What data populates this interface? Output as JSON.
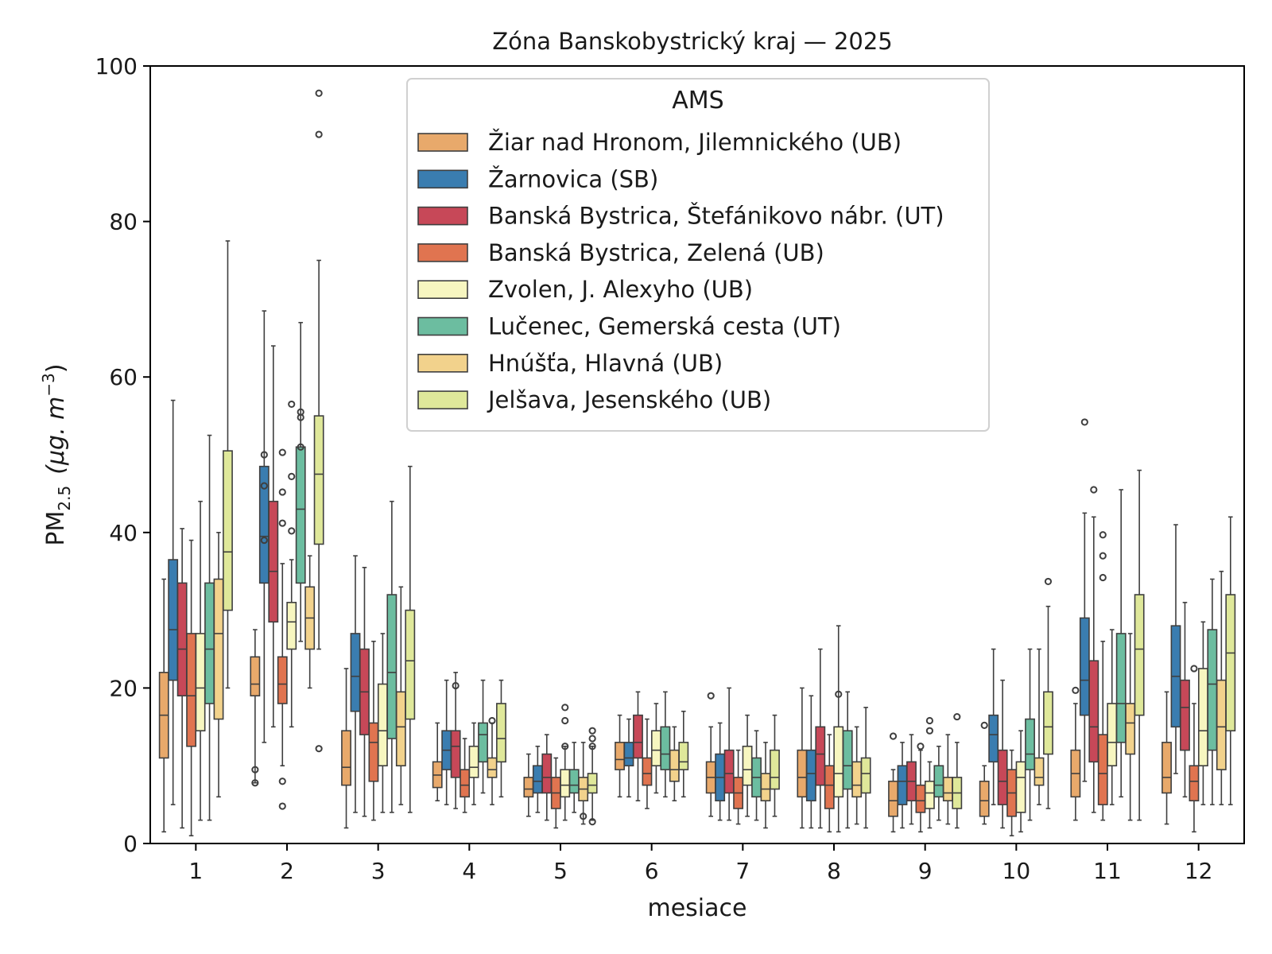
{
  "chart_data": {
    "type": "boxplot",
    "title": "Zóna Banskobystrický kraj —  2025",
    "xlabel": "mesiace",
    "ylabel_main": "PM",
    "ylabel_sub": "2.5",
    "ylabel_unit": "(μg. m",
    "ylabel_exp": "−3",
    "ylabel_close": ")",
    "ylim": [
      0,
      100
    ],
    "yticks": [
      0,
      20,
      40,
      60,
      80,
      100
    ],
    "categories": [
      "1",
      "2",
      "3",
      "4",
      "5",
      "6",
      "7",
      "8",
      "9",
      "10",
      "11",
      "12"
    ],
    "legend": {
      "title": "AMS",
      "placement": "upper-center"
    },
    "series": [
      {
        "name": "Žiar nad Hronom, Jilemnického (UB)",
        "color": "#e8a96b",
        "stats": [
          [
            1.5,
            11,
            16.5,
            22,
            34
          ],
          [
            7.8,
            19,
            20.5,
            24,
            27.5
          ],
          [
            2,
            7.5,
            9.8,
            14.5,
            22.5
          ],
          [
            5.5,
            7.2,
            8.8,
            10.5,
            15.5
          ],
          [
            3.5,
            6,
            7,
            8.5,
            11.5
          ],
          [
            6,
            9.5,
            10.8,
            13,
            16.5
          ],
          [
            3.5,
            6.5,
            8.5,
            10.5,
            15
          ],
          [
            2,
            6,
            8.5,
            12,
            20
          ],
          [
            1.5,
            3.5,
            5.5,
            8,
            9.5
          ],
          [
            2.5,
            3.5,
            5.5,
            8,
            10
          ],
          [
            3,
            6,
            9,
            12,
            18
          ],
          [
            2.5,
            6.5,
            8.5,
            13,
            19.5
          ]
        ],
        "outliers": [
          [],
          [
            9.5,
            7.8
          ],
          [],
          [],
          [],
          [],
          [
            19
          ],
          [],
          [
            13.8
          ],
          [
            15.2
          ],
          [
            19.7
          ],
          []
        ]
      },
      {
        "name": "Žarnovica (SB)",
        "color": "#3a7db0",
        "stats": [
          [
            5,
            21,
            27.5,
            36.5,
            57
          ],
          [
            13,
            33.5,
            39.5,
            48.5,
            68.5
          ],
          [
            4,
            17,
            21.5,
            27,
            37
          ],
          [
            5,
            9.5,
            12,
            14.5,
            21
          ],
          [
            4,
            6.5,
            8,
            10,
            12.5
          ],
          [
            6,
            10,
            11,
            13,
            16
          ],
          [
            3,
            5.5,
            8.5,
            11.5,
            15.5
          ],
          [
            2,
            5.5,
            9,
            12,
            19
          ],
          [
            2,
            5,
            8,
            10,
            13
          ],
          [
            5,
            10.5,
            14,
            16.5,
            25
          ],
          [
            8,
            16.5,
            21,
            29,
            42.5
          ],
          [
            9,
            15,
            21.5,
            28,
            41
          ]
        ],
        "outliers": [
          [],
          [
            50,
            46,
            39
          ],
          [],
          [],
          [],
          [],
          [],
          [],
          [],
          [],
          [
            54.2
          ],
          []
        ]
      },
      {
        "name": "Banská Bystrica, Štefánikovo nábr. (UT)",
        "color": "#c74858",
        "stats": [
          [
            2,
            19,
            25,
            33.5,
            40.5
          ],
          [
            15,
            28.5,
            35,
            44,
            64
          ],
          [
            3.5,
            14,
            19.5,
            25,
            35.5
          ],
          [
            4.5,
            8.5,
            12.5,
            14.5,
            22
          ],
          [
            3,
            6.5,
            8.5,
            11.5,
            14
          ],
          [
            5.5,
            11,
            13,
            16.5,
            19.5
          ],
          [
            3,
            6.5,
            9,
            12,
            20
          ],
          [
            2,
            7.5,
            11.5,
            15,
            25
          ],
          [
            2.5,
            5.5,
            8,
            10.5,
            14
          ],
          [
            2,
            5,
            8,
            12,
            21
          ],
          [
            4,
            10.5,
            15,
            23.5,
            42
          ],
          [
            6,
            12,
            17.5,
            21,
            31
          ]
        ],
        "outliers": [
          [],
          [],
          [],
          [
            20.3
          ],
          [],
          [],
          [],
          [],
          [],
          [],
          [
            45.5
          ],
          []
        ]
      },
      {
        "name": "Banská Bystrica, Zelená (UB)",
        "color": "#e07450",
        "stats": [
          [
            1,
            12.5,
            19,
            27,
            39
          ],
          [
            10,
            18,
            20.5,
            24,
            36
          ],
          [
            3,
            8,
            13,
            15.5,
            26
          ],
          [
            4,
            6,
            7.5,
            9.5,
            13.5
          ],
          [
            2,
            4.5,
            6.5,
            8.5,
            11
          ],
          [
            4.5,
            7.5,
            9,
            11,
            16
          ],
          [
            2.5,
            4.5,
            6.5,
            8.5,
            12
          ],
          [
            1.5,
            4.5,
            7.5,
            10,
            14
          ],
          [
            1.5,
            4,
            5.5,
            7.5,
            12
          ],
          [
            1,
            3.5,
            6.5,
            9.5,
            12
          ],
          [
            3,
            5,
            9,
            14,
            26
          ],
          [
            1.5,
            5.5,
            8,
            10,
            18
          ]
        ],
        "outliers": [
          [],
          [
            50.3,
            45.2,
            41.2,
            8,
            4.8
          ],
          [],
          [],
          [],
          [],
          [],
          [],
          [
            12.5
          ],
          [],
          [
            39.7,
            37,
            34.2
          ],
          [
            22.5
          ]
        ]
      },
      {
        "name": "Zvolen, J. Alexyho (UB)",
        "color": "#f7f6c0",
        "stats": [
          [
            3,
            14.5,
            20,
            27,
            44
          ],
          [
            15,
            25,
            28.5,
            31,
            36.5
          ],
          [
            4,
            10,
            14.5,
            20.5,
            27
          ],
          [
            5,
            8.5,
            9.8,
            12.5,
            15.5
          ],
          [
            3,
            6,
            7.5,
            9.5,
            12.5
          ],
          [
            6.5,
            10,
            12,
            14.5,
            18
          ],
          [
            3.5,
            7.5,
            9.5,
            12.5,
            16.5
          ],
          [
            1.5,
            6,
            9,
            15,
            28
          ],
          [
            2,
            4.5,
            6.5,
            8,
            10.5
          ],
          [
            1.5,
            4,
            8.5,
            10.5,
            14.5
          ],
          [
            5,
            10,
            13,
            18,
            27.5
          ],
          [
            5,
            10,
            14.5,
            22.5,
            28.5
          ]
        ],
        "outliers": [
          [],
          [
            56.5,
            47.2,
            40.2
          ],
          [],
          [],
          [
            17.5,
            15.8,
            12.5
          ],
          [],
          [],
          [
            19.2
          ],
          [
            15.8,
            14.5
          ],
          [],
          [],
          []
        ]
      },
      {
        "name": "Lučenec, Gemerská cesta (UT)",
        "color": "#6cbda0",
        "stats": [
          [
            3,
            18,
            25,
            33.5,
            52.5
          ],
          [
            26,
            33.5,
            43,
            51,
            67
          ],
          [
            4,
            13.5,
            22,
            32,
            44
          ],
          [
            6.5,
            10.5,
            14,
            15.5,
            21
          ],
          [
            4,
            6.5,
            7.5,
            9.5,
            13
          ],
          [
            6,
            9.5,
            11.5,
            15,
            19.5
          ],
          [
            3,
            6,
            8.5,
            11,
            14.5
          ],
          [
            2,
            7,
            10,
            14.5,
            19.5
          ],
          [
            3,
            6,
            7.5,
            10,
            12.5
          ],
          [
            3,
            9.5,
            11.5,
            16,
            25
          ],
          [
            6,
            13,
            18,
            27,
            45.5
          ],
          [
            5,
            12,
            20.5,
            27.5,
            34
          ]
        ],
        "outliers": [
          [],
          [
            55.5,
            54.8,
            51
          ],
          [],
          [],
          [],
          [],
          [],
          [],
          [],
          [],
          [],
          []
        ]
      },
      {
        "name": "Hnúšťa, Hlavná (UB)",
        "color": "#f2d28c",
        "stats": [
          [
            6,
            16,
            27,
            34,
            40
          ],
          [
            20,
            25,
            29,
            33,
            37
          ],
          [
            5,
            10,
            15,
            19.5,
            33
          ],
          [
            5,
            8.5,
            9.5,
            11,
            15.5
          ],
          [
            2.5,
            5.5,
            7,
            8.5,
            13
          ],
          [
            5.5,
            8,
            9.5,
            12,
            15
          ],
          [
            2,
            5.5,
            7,
            9,
            13
          ],
          [
            2.5,
            6,
            7.5,
            10.5,
            15
          ],
          [
            2.5,
            5.5,
            6.5,
            8.5,
            14
          ],
          [
            5,
            7.5,
            8.5,
            11,
            25
          ],
          [
            3,
            11.5,
            15.5,
            18,
            27
          ],
          [
            5,
            9.5,
            15,
            21,
            35
          ]
        ],
        "outliers": [
          [],
          [],
          [],
          [
            15.8
          ],
          [
            3.5
          ],
          [],
          [],
          [],
          [],
          [],
          [],
          []
        ]
      },
      {
        "name": "Jelšava, Jesenského (UB)",
        "color": "#dfe89a",
        "stats": [
          [
            20,
            30,
            37.5,
            50.5,
            77.5
          ],
          [
            25,
            38.5,
            47.5,
            55,
            75
          ],
          [
            4,
            16,
            23.5,
            30,
            48.5
          ],
          [
            6,
            10.5,
            13.5,
            18,
            21
          ],
          [
            3,
            6.5,
            7.5,
            9,
            12.5
          ],
          [
            6,
            9.5,
            10.5,
            13,
            17
          ],
          [
            3.5,
            7,
            8.5,
            12,
            16.5
          ],
          [
            2,
            6.5,
            9,
            11,
            17.5
          ],
          [
            2,
            4.5,
            6.5,
            8.5,
            13
          ],
          [
            4.5,
            11.5,
            15,
            19.5,
            30.5
          ],
          [
            3,
            16.5,
            25,
            32,
            48
          ],
          [
            5,
            14.5,
            24.5,
            32,
            42
          ]
        ],
        "outliers": [
          [],
          [
            96.5,
            91.2,
            12.2
          ],
          [],
          [],
          [
            14.5,
            13.5,
            12.5,
            2.8
          ],
          [],
          [],
          [],
          [
            16.3
          ],
          [
            33.7
          ],
          [],
          []
        ]
      }
    ]
  }
}
